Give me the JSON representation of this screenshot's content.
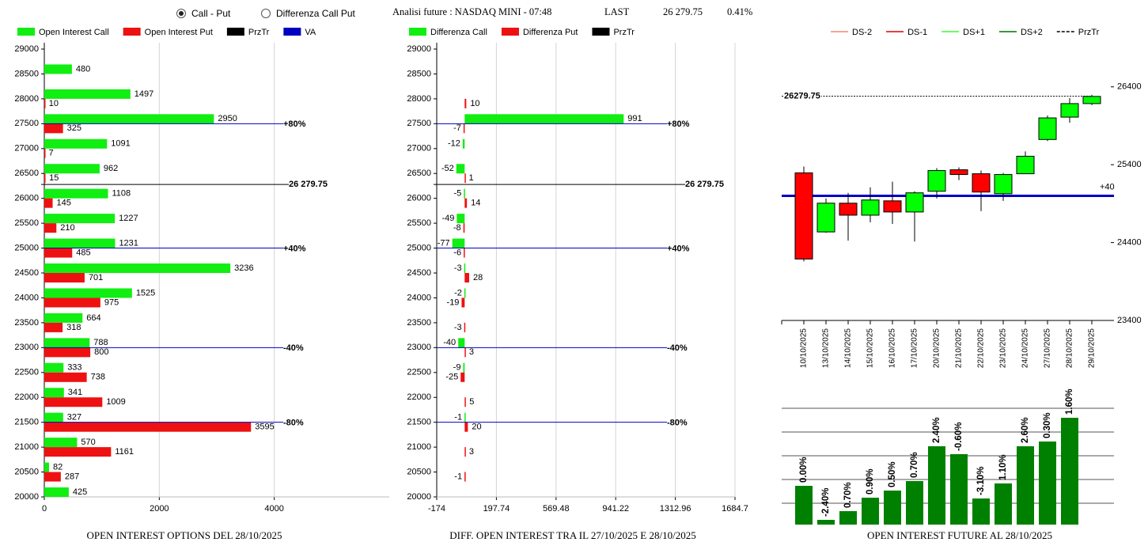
{
  "header": {
    "options": [
      "Call - Put",
      "Differenza Call Put"
    ],
    "selected": 0,
    "title": "Analisi future : NASDAQ MINI - 07:48",
    "last_label": "LAST",
    "last": "26 279.75",
    "change": "0.41%"
  },
  "chart_data": [
    {
      "type": "barh",
      "title": "OPEN INTEREST OPTIONS DEL 28/10/2025",
      "y": [
        29000,
        28500,
        28000,
        27500,
        27000,
        26500,
        26000,
        25500,
        25000,
        24500,
        24000,
        23500,
        23000,
        22500,
        22000,
        21500,
        21000,
        20500,
        20000
      ],
      "series": [
        {
          "name": "Open Interest Call",
          "color": "#11ee11",
          "values": [
            null,
            480,
            1497,
            2950,
            1091,
            962,
            1108,
            1227,
            1231,
            3236,
            1525,
            664,
            788,
            333,
            341,
            327,
            570,
            82,
            425
          ]
        },
        {
          "name": "Open Interest Put",
          "color": "#ee1111",
          "values": [
            null,
            null,
            10,
            325,
            7,
            15,
            145,
            210,
            485,
            701,
            975,
            318,
            800,
            738,
            1009,
            3595,
            1161,
            287,
            null
          ]
        }
      ],
      "xlim": [
        0,
        6000
      ],
      "xticks": [
        0,
        2000,
        4000
      ],
      "ylim": [
        20000,
        29000
      ],
      "yticks": [
        29000,
        28500,
        28000,
        27500,
        27000,
        26500,
        26000,
        25500,
        25000,
        24500,
        24000,
        23500,
        23000,
        22500,
        22000,
        21500,
        21000,
        20500,
        20000
      ],
      "grid": true,
      "last": {
        "name": "PrzTr",
        "color": "#000000",
        "value": 26279.75,
        "label": "26 279.75"
      },
      "reference": {
        "name": "VA",
        "color": "#0000c0",
        "lines": [
          {
            "value": 27500,
            "label": "+80%"
          },
          {
            "value": 25000,
            "label": "+40%"
          },
          {
            "value": 23000,
            "label": "-40%"
          },
          {
            "value": 21500,
            "label": "-80%"
          }
        ]
      }
    },
    {
      "type": "barh",
      "title": "DIFF. OPEN INTEREST TRA IL 27/10/2025 E 28/10/2025",
      "y": [
        29000,
        28500,
        28000,
        27500,
        27000,
        26500,
        26000,
        25500,
        25000,
        24500,
        24000,
        23500,
        23000,
        22500,
        22000,
        21500,
        21000,
        20500,
        20000
      ],
      "series": [
        {
          "name": "Differenza Call",
          "color": "#11ee11",
          "values": [
            null,
            null,
            null,
            991,
            -12,
            -52,
            -5,
            -49,
            -77,
            -3,
            -2,
            null,
            -40,
            -9,
            null,
            -1,
            null,
            null,
            null
          ]
        },
        {
          "name": "Differenza Put",
          "color": "#ee1111",
          "values": [
            null,
            null,
            10,
            -7,
            null,
            1,
            14,
            -8,
            -6,
            28,
            -19,
            -3,
            3,
            -25,
            5,
            20,
            3,
            -1,
            null
          ]
        }
      ],
      "xlim": [
        -174,
        1684.7
      ],
      "xticks": [
        -174,
        197.74,
        569.48,
        941.22,
        1312.96,
        1684.7
      ],
      "ylim": [
        20000,
        29000
      ],
      "yticks": [
        29000,
        28500,
        28000,
        27500,
        27000,
        26500,
        26000,
        25500,
        25000,
        24500,
        24000,
        23500,
        23000,
        22500,
        22000,
        21500,
        21000,
        20500,
        20000
      ],
      "grid": true,
      "last": {
        "name": "PrzTr",
        "color": "#000000",
        "value": 26279.75,
        "label": "26 279.75"
      },
      "reference": {
        "color": "#0000c0",
        "lines": [
          {
            "value": 27500,
            "label": "+80%"
          },
          {
            "value": 25000,
            "label": "+40%"
          },
          {
            "value": 23000,
            "label": "-40%"
          },
          {
            "value": 21500,
            "label": "-80%"
          }
        ]
      }
    },
    {
      "type": "candlestick",
      "categories": [
        "10/10/2025",
        "13/10/2025",
        "14/10/2025",
        "15/10/2025",
        "16/10/2025",
        "17/10/2025",
        "20/10/2025",
        "21/10/2025",
        "22/10/2025",
        "23/10/2025",
        "24/10/2025",
        "27/10/2025",
        "28/10/2025",
        "29/10/2025"
      ],
      "open": [
        25295,
        24537,
        24906,
        24752,
        24936,
        24793,
        25059,
        25335,
        25284,
        25028,
        25284,
        25724,
        26011,
        26185
      ],
      "high": [
        25376,
        24967,
        25039,
        25110,
        25182,
        25059,
        25356,
        25366,
        25325,
        25295,
        25571,
        26032,
        26257,
        26298
      ],
      "low": [
        24158,
        24527,
        24425,
        24660,
        24640,
        24414,
        24967,
        25202,
        24803,
        24936,
        25284,
        25704,
        25939,
        26165
      ],
      "close": [
        24189,
        24906,
        24752,
        24947,
        24793,
        25039,
        25325,
        25274,
        25049,
        25274,
        25509,
        26001,
        26185,
        26277
      ],
      "up_color": "#00ff00",
      "down_color": "#ff0000",
      "ylim": [
        23400,
        26550
      ],
      "yticks": [
        23400,
        24400,
        25400,
        26400
      ],
      "legend": [
        {
          "name": "DS-2",
          "color": "#f08a6a"
        },
        {
          "name": "DS-1",
          "color": "#e00000"
        },
        {
          "name": "DS+1",
          "color": "#33ff33"
        },
        {
          "name": "DS+2",
          "color": "#007000"
        }
      ],
      "last": {
        "name": "PrzTr",
        "color": "#000000",
        "value": 26279.75,
        "label": "26279.75"
      },
      "va": {
        "color": "#0000c8",
        "value": 25000,
        "label": "+40"
      }
    },
    {
      "type": "bar",
      "title": "OPEN INTEREST FUTURE AL 28/10/2025",
      "values": [
        49,
        6,
        17,
        34,
        43,
        55,
        99,
        89,
        33,
        52,
        99,
        105,
        135
      ],
      "labels": [
        "0.00%",
        "-2.40%",
        "0.70%",
        "0.90%",
        "0.50%",
        "0.70%",
        "2.40%",
        "-0.60%",
        "-3.10%",
        "1.10%",
        "2.60%",
        "0.30%",
        "1.60%"
      ],
      "color": "#008000",
      "ylim": [
        0,
        150
      ],
      "gridlines": [
        27,
        57,
        87,
        117,
        147
      ]
    }
  ]
}
